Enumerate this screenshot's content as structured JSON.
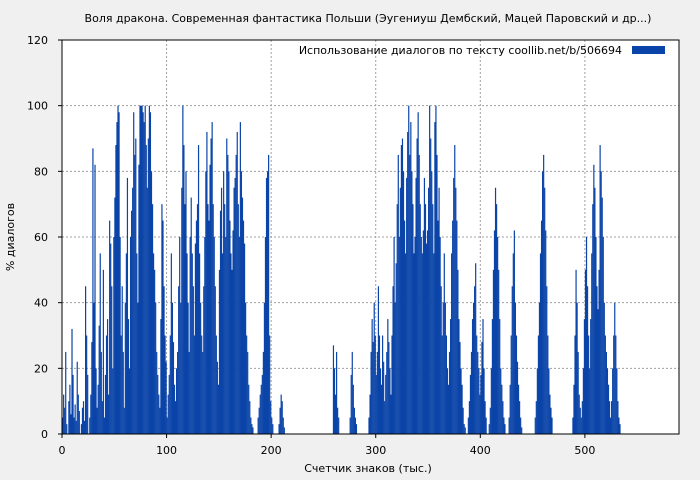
{
  "chart_data": {
    "type": "bar",
    "title": "Воля дракона. Современная фантастика Польши (Эугениуш Дембский, Мацей Паровский и др...)",
    "xlabel": "Счетчик знаков (тыс.)",
    "ylabel": "% диалогов",
    "xlim": [
      0,
      590
    ],
    "ylim": [
      0,
      120
    ],
    "x_ticks": [
      0,
      100,
      200,
      300,
      400,
      500
    ],
    "y_ticks": [
      0,
      20,
      40,
      60,
      80,
      100,
      120
    ],
    "grid": true,
    "legend_position": "top-right",
    "series": [
      {
        "name": "Использование диалогов по тексту  coollib.net/b/506694",
        "color": "#0b44a8",
        "bin_width": 1,
        "values": [
          5,
          12,
          8,
          25,
          3,
          0,
          10,
          15,
          6,
          32,
          18,
          5,
          9,
          4,
          22,
          12,
          7,
          0,
          3,
          8,
          10,
          4,
          45,
          30,
          18,
          0,
          5,
          12,
          28,
          87,
          40,
          82,
          20,
          8,
          15,
          33,
          55,
          25,
          10,
          50,
          5,
          18,
          30,
          35,
          12,
          65,
          58,
          45,
          20,
          60,
          72,
          88,
          95,
          100,
          98,
          60,
          30,
          45,
          25,
          8,
          40,
          55,
          78,
          35,
          20,
          60,
          68,
          75,
          98,
          85,
          90,
          55,
          40,
          82,
          100,
          100,
          100,
          98,
          95,
          100,
          88,
          75,
          90,
          100,
          98,
          80,
          70,
          55,
          50,
          40,
          25,
          18,
          12,
          8,
          35,
          70,
          65,
          45,
          30,
          22,
          5,
          12,
          18,
          30,
          55,
          40,
          28,
          15,
          10,
          20,
          25,
          45,
          60,
          40,
          75,
          100,
          88,
          70,
          80,
          55,
          40,
          25,
          60,
          72,
          55,
          45,
          30,
          58,
          65,
          70,
          88,
          55,
          40,
          30,
          25,
          45,
          60,
          80,
          92,
          70,
          65,
          82,
          90,
          95,
          70,
          60,
          45,
          30,
          22,
          15,
          50,
          68,
          75,
          55,
          80,
          70,
          60,
          90,
          85,
          80,
          65,
          55,
          50,
          62,
          75,
          78,
          85,
          92,
          70,
          60,
          95,
          80,
          72,
          65,
          58,
          40,
          30,
          25,
          15,
          10,
          5,
          3,
          2,
          0,
          0,
          0,
          0,
          5,
          8,
          12,
          15,
          18,
          25,
          40,
          60,
          78,
          80,
          85,
          30,
          10,
          5,
          3,
          0,
          0,
          0,
          0,
          0,
          3,
          8,
          12,
          10,
          5,
          2,
          0,
          0,
          0,
          0,
          0,
          0,
          0,
          0,
          0,
          0,
          0,
          0,
          0,
          0,
          0,
          0,
          0,
          0,
          0,
          0,
          0,
          0,
          0,
          0,
          0,
          0,
          0,
          0,
          0,
          0,
          0,
          0,
          0,
          0,
          0,
          0,
          0,
          0,
          0,
          0,
          0,
          0,
          0,
          0,
          0,
          0,
          27,
          20,
          12,
          25,
          8,
          5,
          0,
          0,
          0,
          0,
          0,
          0,
          0,
          0,
          0,
          0,
          5,
          18,
          25,
          15,
          8,
          5,
          3,
          0,
          0,
          0,
          0,
          0,
          0,
          0,
          0,
          0,
          0,
          0,
          5,
          12,
          25,
          35,
          28,
          40,
          30,
          18,
          25,
          45,
          30,
          20,
          15,
          30,
          22,
          10,
          18,
          25,
          35,
          28,
          20,
          12,
          30,
          45,
          60,
          40,
          52,
          70,
          85,
          60,
          75,
          88,
          90,
          80,
          65,
          55,
          78,
          92,
          100,
          85,
          95,
          80,
          70,
          55,
          60,
          78,
          90,
          98,
          85,
          70,
          60,
          55,
          62,
          78,
          70,
          58,
          62,
          75,
          100,
          90,
          80,
          70,
          55,
          95,
          100,
          85,
          65,
          75,
          60,
          45,
          30,
          40,
          55,
          40,
          30,
          20,
          15,
          25,
          35,
          55,
          65,
          78,
          88,
          75,
          65,
          50,
          35,
          28,
          20,
          15,
          8,
          3,
          2,
          0,
          0,
          5,
          10,
          18,
          25,
          35,
          40,
          45,
          52,
          30,
          25,
          20,
          12,
          18,
          28,
          35,
          20,
          10,
          5,
          0,
          0,
          3,
          8,
          20,
          35,
          50,
          62,
          75,
          70,
          60,
          50,
          35,
          20,
          15,
          10,
          5,
          3,
          0,
          0,
          0,
          5,
          15,
          30,
          45,
          55,
          62,
          40,
          30,
          22,
          15,
          10,
          5,
          2,
          0,
          0,
          0,
          0,
          0,
          0,
          0,
          0,
          0,
          0,
          0,
          0,
          5,
          10,
          20,
          30,
          40,
          55,
          65,
          80,
          85,
          75,
          62,
          45,
          30,
          20,
          12,
          8,
          5,
          0,
          0,
          0,
          0,
          0,
          0,
          0,
          0,
          0,
          0,
          0,
          0,
          0,
          0,
          0,
          0,
          0,
          0,
          0,
          5,
          15,
          30,
          50,
          40,
          25,
          12,
          8,
          5,
          10,
          20,
          35,
          50,
          60,
          45,
          30,
          20,
          35,
          55,
          70,
          82,
          75,
          60,
          45,
          38,
          50,
          88,
          80,
          72,
          60,
          40,
          30,
          25,
          20,
          15,
          10,
          5,
          10,
          20,
          30,
          40,
          30,
          20,
          10,
          5,
          3,
          0,
          0,
          0,
          0,
          0,
          0,
          0,
          0,
          0,
          0,
          0,
          0,
          0,
          0,
          0,
          0,
          0,
          0,
          0,
          0,
          0,
          0,
          0,
          0,
          0,
          0,
          0,
          0,
          0,
          0,
          0,
          0,
          0,
          0,
          0,
          0,
          0,
          0,
          0,
          0,
          0,
          0,
          0,
          0,
          0,
          0,
          0,
          0,
          0,
          0,
          0,
          0,
          0,
          0,
          0,
          0,
          0,
          0,
          0,
          0,
          0,
          0,
          0,
          0,
          0,
          0
        ]
      }
    ]
  }
}
